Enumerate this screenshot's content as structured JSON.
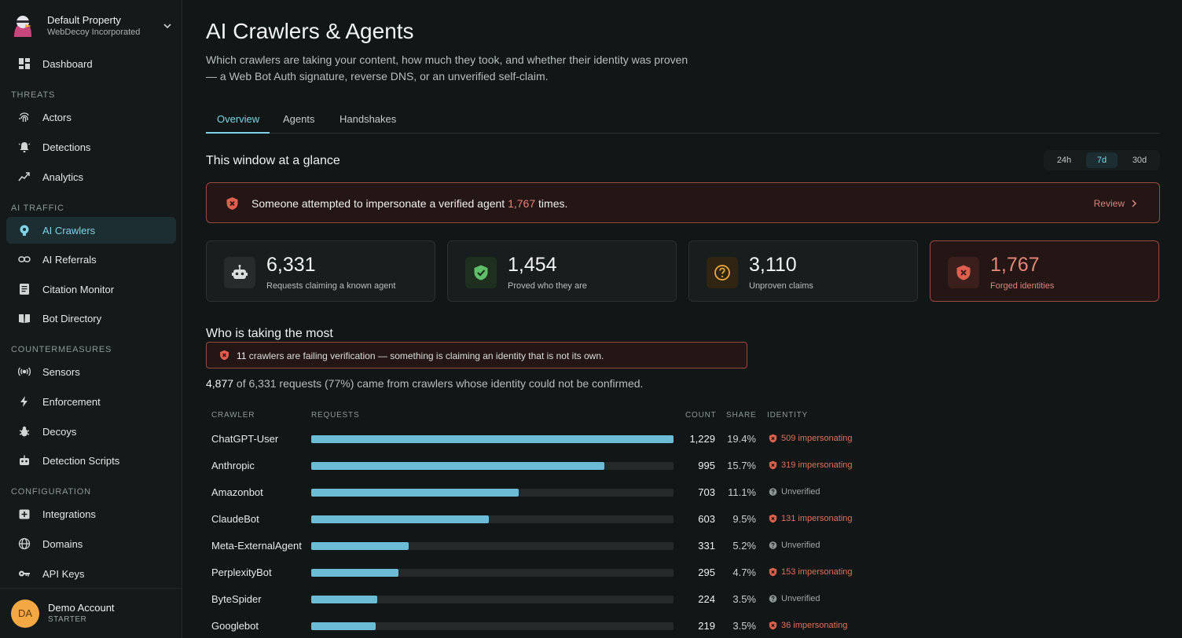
{
  "property": {
    "name": "Default Property",
    "org": "WebDecoy Incorporated"
  },
  "nav": {
    "dashboard": "Dashboard",
    "sections": {
      "threats": "THREATS",
      "ai_traffic": "AI TRAFFIC",
      "countermeasures": "COUNTERMEASURES",
      "configuration": "CONFIGURATION"
    },
    "items": {
      "actors": "Actors",
      "detections": "Detections",
      "analytics": "Analytics",
      "ai_crawlers": "AI Crawlers",
      "ai_referrals": "AI Referrals",
      "citation_monitor": "Citation Monitor",
      "bot_directory": "Bot Directory",
      "sensors": "Sensors",
      "enforcement": "Enforcement",
      "decoys": "Decoys",
      "detection_scripts": "Detection Scripts",
      "integrations": "Integrations",
      "domains": "Domains",
      "api_keys": "API Keys"
    }
  },
  "account": {
    "initials": "DA",
    "name": "Demo Account",
    "plan": "STARTER"
  },
  "page": {
    "title": "AI Crawlers & Agents",
    "subtitle": "Which crawlers are taking your content, how much they took, and whether their identity was proven — a Web Bot Auth signature, reverse DNS, or an unverified self-claim."
  },
  "tabs": [
    "Overview",
    "Agents",
    "Handshakes"
  ],
  "glance": {
    "title": "This window at a glance",
    "ranges": [
      "24h",
      "7d",
      "30d"
    ],
    "selected_range": "7d"
  },
  "alert": {
    "prefix": "Someone attempted to impersonate a verified agent ",
    "count": "1,767",
    "suffix": " times.",
    "action": "Review"
  },
  "stats": [
    {
      "value": "6,331",
      "label": "Requests claiming a known agent",
      "icon": "robot-icon"
    },
    {
      "value": "1,454",
      "label": "Proved who they are",
      "icon": "shield-check-icon"
    },
    {
      "value": "3,110",
      "label": "Unproven claims",
      "icon": "question-icon"
    },
    {
      "value": "1,767",
      "label": "Forged identities",
      "icon": "shield-x-icon"
    }
  ],
  "who": {
    "title": "Who is taking the most",
    "warning_count": "11",
    "warning_text": " crawlers are failing verification — something is claiming an identity that is not its own.",
    "summary_count": "4,877",
    "summary_rest": " of 6,331 requests (77%) came from crawlers whose identity could not be confirmed."
  },
  "table": {
    "headers": {
      "crawler": "CRAWLER",
      "requests": "REQUESTS",
      "count": "COUNT",
      "share": "SHARE",
      "identity": "IDENTITY"
    },
    "rows": [
      {
        "name": "ChatGPT-User",
        "count": "1,229",
        "value": 1229,
        "share": "19.4%",
        "identity": "509 impersonating",
        "status": "bad"
      },
      {
        "name": "Anthropic",
        "count": "995",
        "value": 995,
        "share": "15.7%",
        "identity": "319 impersonating",
        "status": "bad"
      },
      {
        "name": "Amazonbot",
        "count": "703",
        "value": 703,
        "share": "11.1%",
        "identity": "Unverified",
        "status": "unv"
      },
      {
        "name": "ClaudeBot",
        "count": "603",
        "value": 603,
        "share": "9.5%",
        "identity": "131 impersonating",
        "status": "bad"
      },
      {
        "name": "Meta-ExternalAgent",
        "count": "331",
        "value": 331,
        "share": "5.2%",
        "identity": "Unverified",
        "status": "unv"
      },
      {
        "name": "PerplexityBot",
        "count": "295",
        "value": 295,
        "share": "4.7%",
        "identity": "153 impersonating",
        "status": "bad"
      },
      {
        "name": "ByteSpider",
        "count": "224",
        "value": 224,
        "share": "3.5%",
        "identity": "Unverified",
        "status": "unv"
      },
      {
        "name": "Googlebot",
        "count": "219",
        "value": 219,
        "share": "3.5%",
        "identity": "36 impersonating",
        "status": "bad"
      }
    ]
  },
  "colors": {
    "accent": "#7fd3e6",
    "bar": "#6cbcd6",
    "danger": "#e0705f",
    "warning": "#f0a93a",
    "success": "#5fbf68"
  }
}
